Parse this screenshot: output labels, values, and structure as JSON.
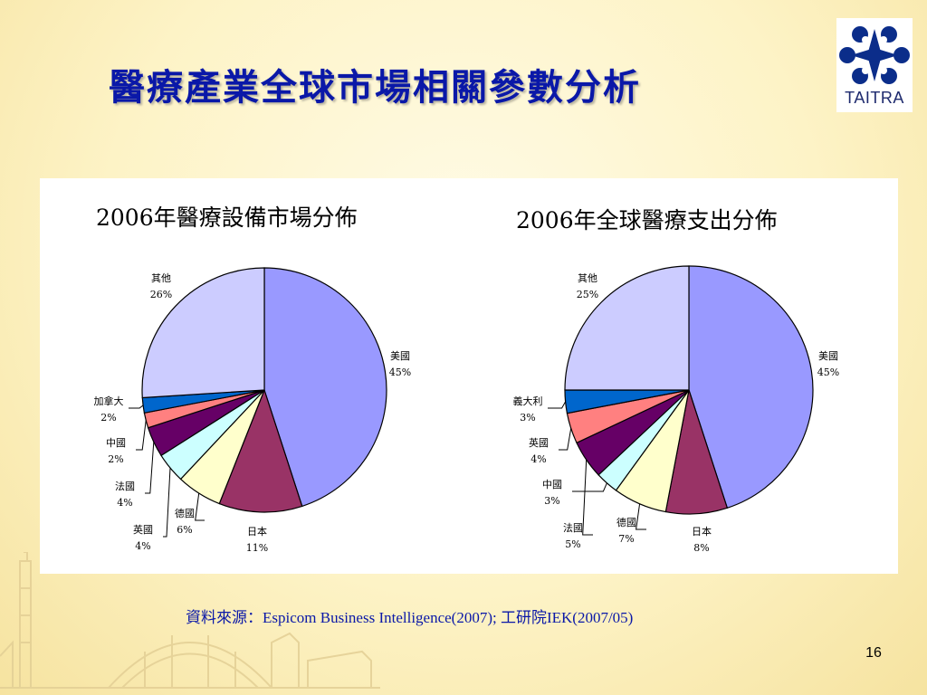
{
  "title": "醫療產業全球市場相關參數分析",
  "logo": {
    "text": "TAITRA",
    "color": "#1e2a6e"
  },
  "source": "資料來源：Espicom Business Intelligence(2007); 工研院IEK(2007/05)",
  "page_number": "16",
  "colors": {
    "title": "#0a18a8",
    "slices": [
      "#9999ff",
      "#993366",
      "#ffffcc",
      "#ccffff",
      "#660066",
      "#ff8080",
      "#0066cc",
      "#ccccff"
    ]
  },
  "chart_data": [
    {
      "type": "pie",
      "title": "2006年醫療設備市場分佈",
      "labels": [
        "美國",
        "日本",
        "德國",
        "法國",
        "英國",
        "中國",
        "加拿大",
        "其他"
      ],
      "values": [
        45,
        11,
        6,
        4,
        4,
        2,
        2,
        26
      ],
      "value_labels": [
        "45%",
        "11%",
        "6%",
        "4%",
        "4%",
        "2%",
        "2%",
        "26%"
      ],
      "slice_order": [
        "美國",
        "日本",
        "德國",
        "英國",
        "法國",
        "中國",
        "加拿大",
        "其他"
      ]
    },
    {
      "type": "pie",
      "title": "2006年全球醫療支出分佈",
      "labels": [
        "美國",
        "日本",
        "德國",
        "法國",
        "中國",
        "英國",
        "義大利",
        "其他"
      ],
      "values": [
        45,
        8,
        7,
        5,
        3,
        4,
        3,
        25
      ],
      "value_labels": [
        "45%",
        "8%",
        "7%",
        "5%",
        "3%",
        "4%",
        "3%",
        "25%"
      ],
      "slice_order": [
        "美國",
        "日本",
        "德國",
        "中國",
        "法國",
        "英國",
        "義大利",
        "其他"
      ]
    }
  ]
}
